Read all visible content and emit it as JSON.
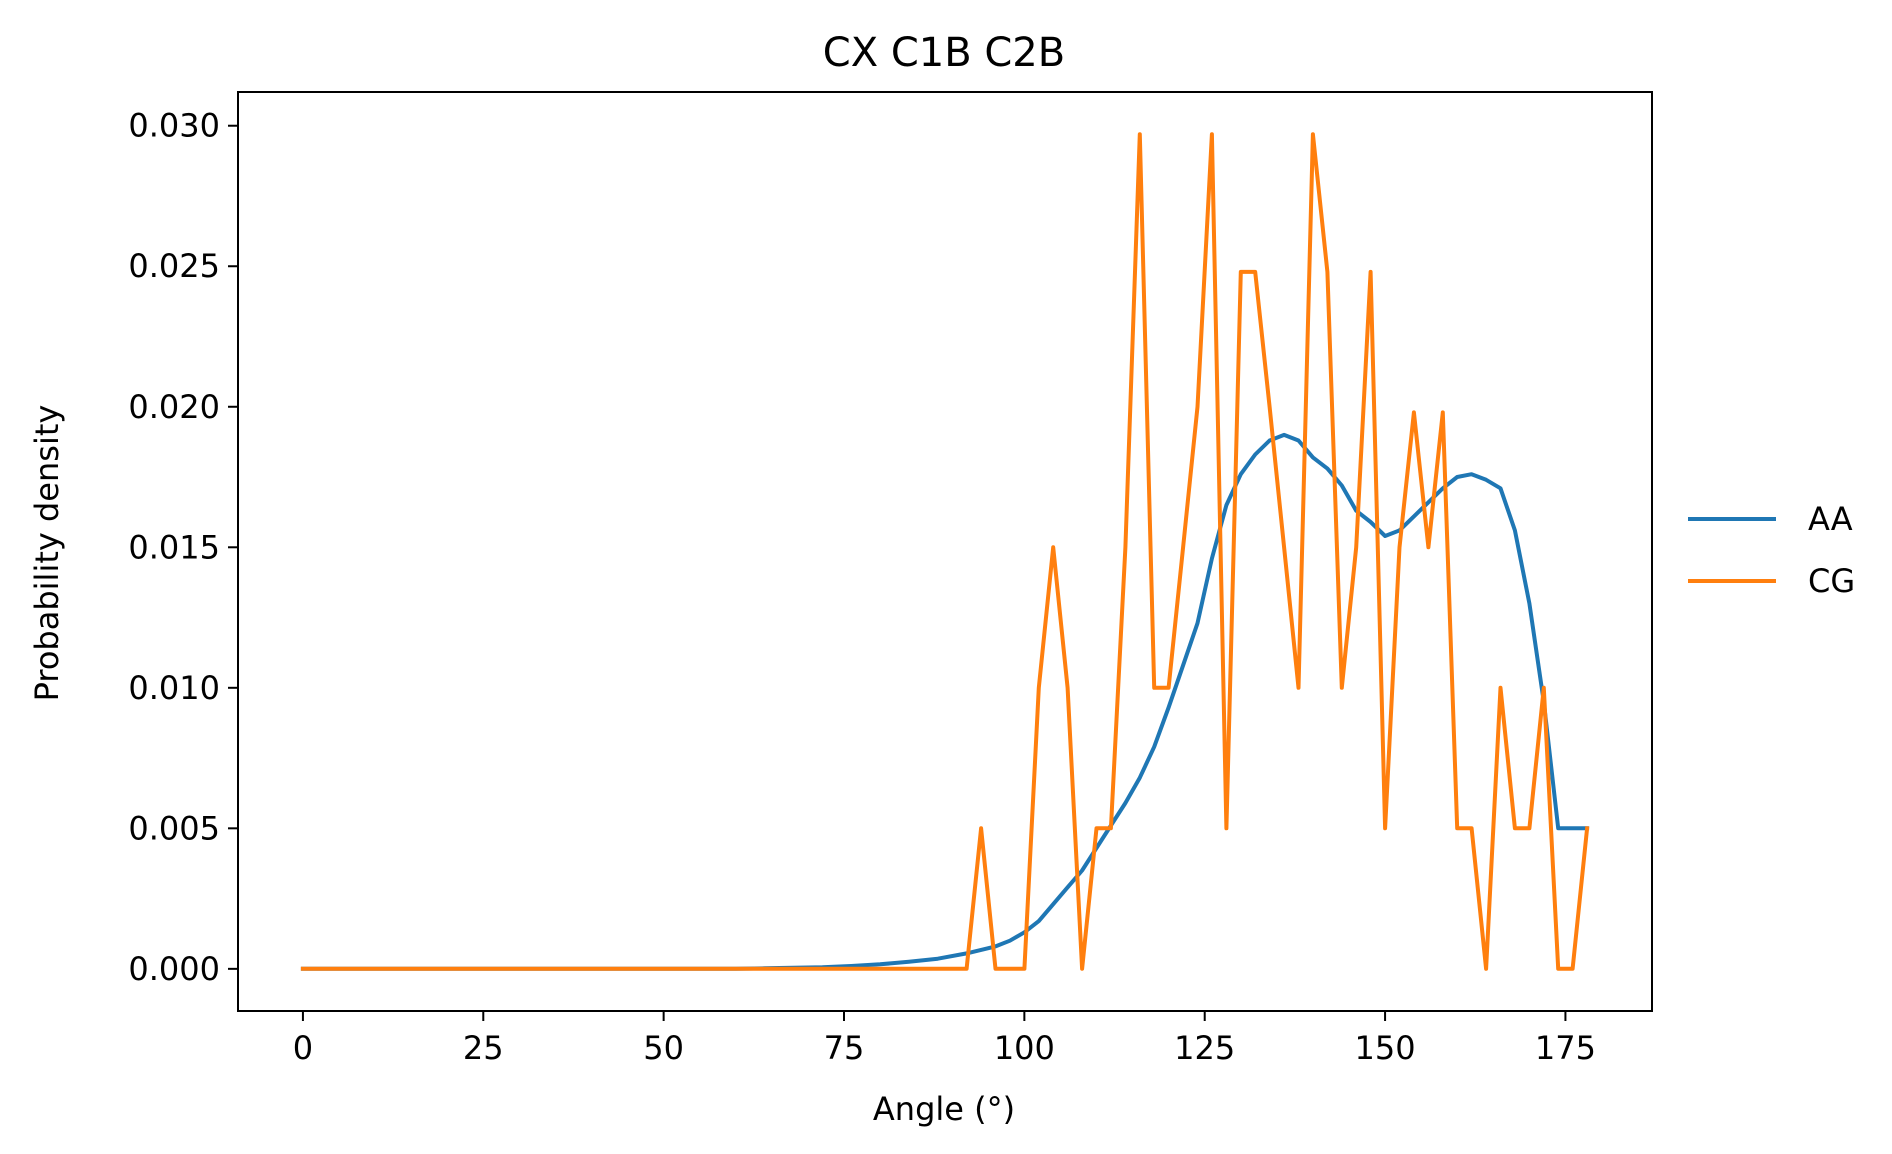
{
  "chart_data": {
    "type": "line",
    "title": "CX C1B C2B",
    "xlabel": "Angle (°)",
    "ylabel": "Probability density",
    "xlim": [
      -9,
      187
    ],
    "ylim": [
      -0.0015,
      0.0312
    ],
    "xticks": [
      0,
      25,
      50,
      75,
      100,
      125,
      150,
      175
    ],
    "xtick_labels": [
      "0",
      "25",
      "50",
      "75",
      "100",
      "125",
      "150",
      "175"
    ],
    "yticks": [
      0,
      0.005,
      0.01,
      0.015,
      0.02,
      0.025,
      0.03
    ],
    "ytick_labels": [
      "0.000",
      "0.005",
      "0.010",
      "0.015",
      "0.020",
      "0.025",
      "0.030"
    ],
    "grid": false,
    "legend_position": "outside right",
    "colors": {
      "AA": "#1f77b4",
      "CG": "#ff7f0e"
    },
    "series": [
      {
        "name": "AA",
        "x": [
          0,
          60,
          64,
          68,
          72,
          76,
          80,
          84,
          88,
          92,
          96,
          98,
          100,
          102,
          104,
          106,
          108,
          110,
          112,
          114,
          116,
          118,
          120,
          122,
          124,
          126,
          128,
          130,
          132,
          134,
          136,
          138,
          140,
          142,
          144,
          146,
          148,
          150,
          152,
          154,
          156,
          158,
          160,
          162,
          164,
          166,
          168,
          170,
          172,
          174,
          176,
          178
        ],
        "y": [
          0,
          0,
          2e-05,
          4e-05,
          6e-05,
          0.0001,
          0.00016,
          0.00025,
          0.00036,
          0.00055,
          0.0008,
          0.001,
          0.0013,
          0.0017,
          0.0023,
          0.0029,
          0.0035,
          0.0043,
          0.0051,
          0.0059,
          0.0068,
          0.0079,
          0.0093,
          0.0108,
          0.0123,
          0.0146,
          0.0165,
          0.0176,
          0.0183,
          0.0188,
          0.019,
          0.0188,
          0.0182,
          0.0178,
          0.0172,
          0.0163,
          0.0159,
          0.0154,
          0.0156,
          0.0161,
          0.0166,
          0.0171,
          0.0175,
          0.0176,
          0.0174,
          0.0171,
          0.0156,
          0.013,
          0.0095,
          0.005,
          0.005,
          0.005
        ]
      },
      {
        "name": "CG",
        "x": [
          0,
          92,
          94,
          96,
          98,
          100,
          102,
          104,
          106,
          108,
          110,
          112,
          114,
          116,
          118,
          120,
          122,
          124,
          126,
          128,
          130,
          132,
          134,
          136,
          138,
          140,
          142,
          144,
          146,
          148,
          150,
          152,
          154,
          156,
          158,
          160,
          162,
          164,
          166,
          168,
          170,
          172,
          174,
          176,
          178
        ],
        "y": [
          0,
          0,
          0.005,
          0,
          0,
          0,
          0.01,
          0.015,
          0.01,
          0,
          0.005,
          0.005,
          0.015,
          0.0297,
          0.01,
          0.01,
          0.015,
          0.02,
          0.0297,
          0.005,
          0.0248,
          0.0248,
          0.02,
          0.015,
          0.01,
          0.0297,
          0.0248,
          0.01,
          0.015,
          0.0248,
          0.005,
          0.015,
          0.0198,
          0.015,
          0.0198,
          0.005,
          0.005,
          0,
          0.01,
          0.005,
          0.005,
          0.01,
          0,
          0,
          0.005
        ]
      }
    ]
  }
}
